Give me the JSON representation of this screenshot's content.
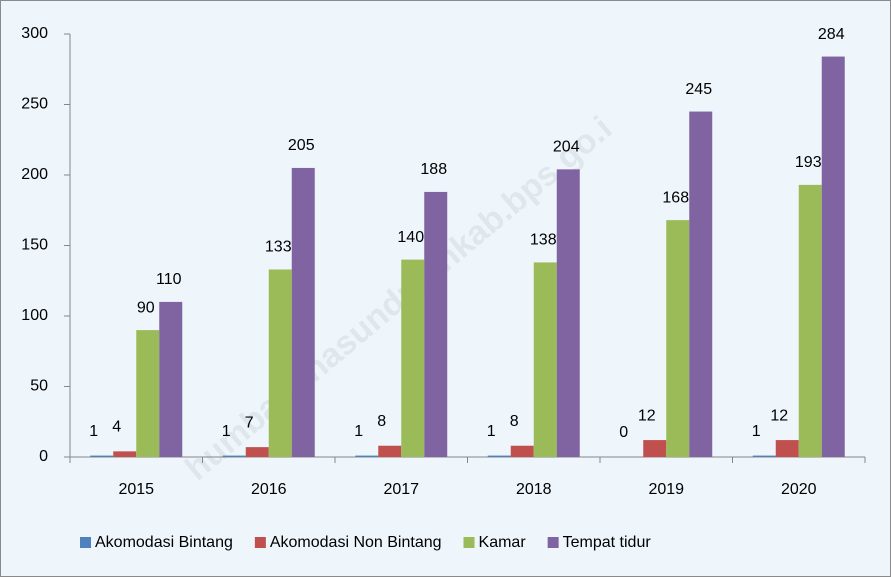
{
  "chart_data": {
    "type": "bar",
    "categories": [
      "2015",
      "2016",
      "2017",
      "2018",
      "2019",
      "2020"
    ],
    "series": [
      {
        "name": "Akomodasi Bintang",
        "color": "#4f81bd",
        "values": [
          1,
          1,
          1,
          1,
          0,
          1
        ]
      },
      {
        "name": "Akomodasi Non Bintang",
        "color": "#c0504d",
        "values": [
          4,
          7,
          8,
          8,
          12,
          12
        ]
      },
      {
        "name": "Kamar",
        "color": "#9bbb59",
        "values": [
          90,
          133,
          140,
          138,
          168,
          193
        ]
      },
      {
        "name": "Tempat tidur",
        "color": "#8064a2",
        "values": [
          110,
          205,
          188,
          204,
          245,
          284
        ]
      }
    ],
    "ylim": [
      0,
      300
    ],
    "yticks": [
      0,
      50,
      100,
      150,
      200,
      250,
      300
    ],
    "grid": false,
    "legend": "bottom",
    "watermark": "humbanghasundutankab.bps.go.i"
  }
}
